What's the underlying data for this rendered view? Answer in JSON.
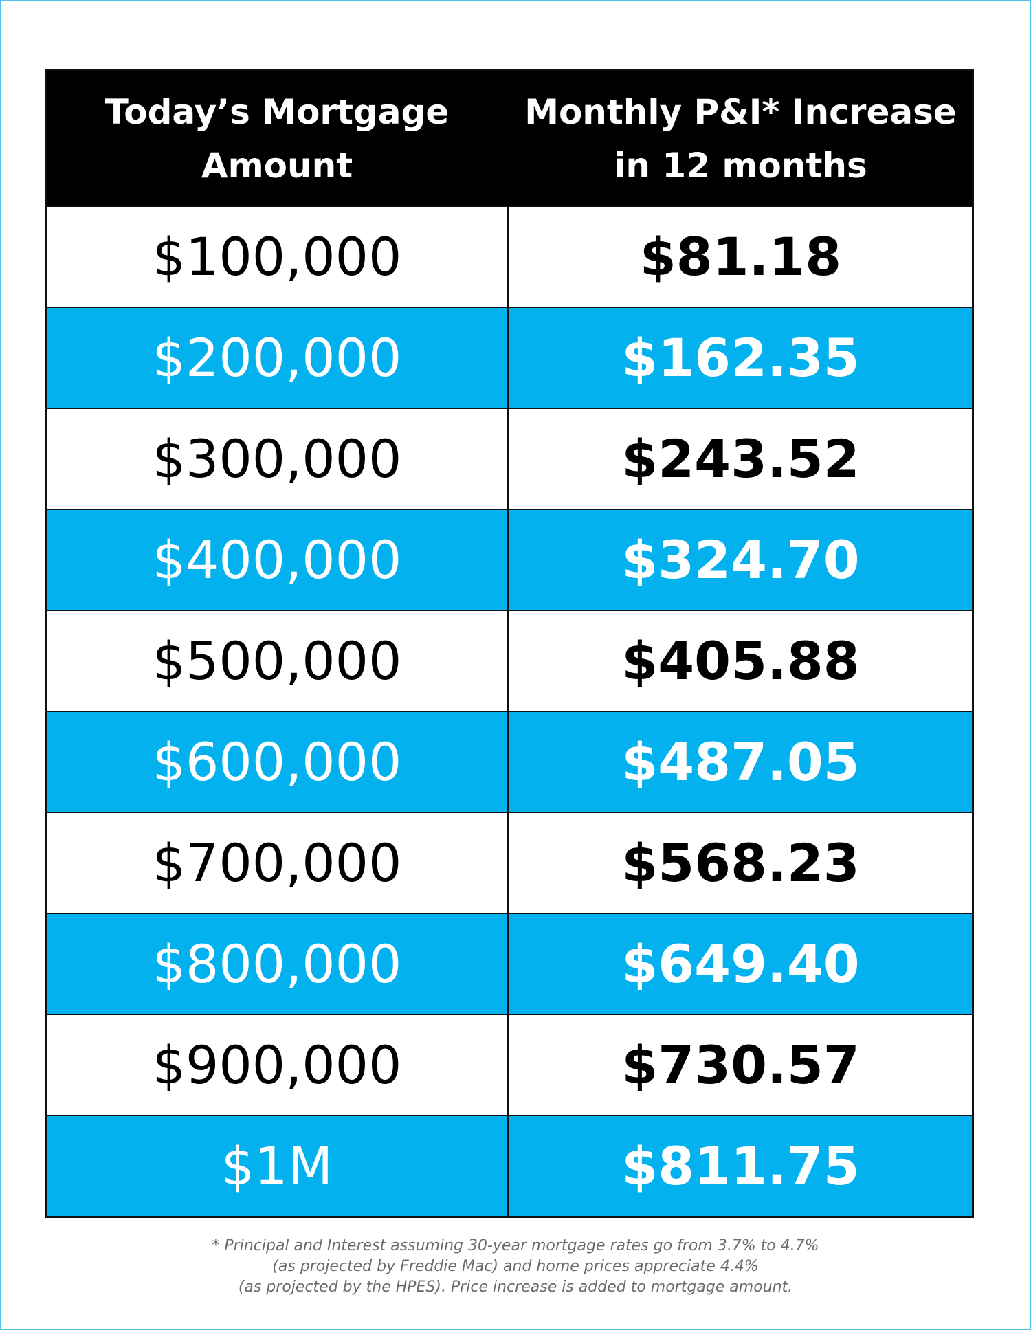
{
  "colors": {
    "header_bg": "#000000",
    "band_blue": "#03b1ef",
    "band_white": "#ffffff",
    "frame": "#4fc3ec",
    "footnote_text": "#6b6b6b"
  },
  "chart_data": {
    "type": "table",
    "columns": [
      "Today’s Mortgage\nAmount",
      "Monthly P&I* Increase\nin 12 months"
    ],
    "rows": [
      [
        "$100,000",
        "$81.18"
      ],
      [
        "$200,000",
        "$162.35"
      ],
      [
        "$300,000",
        "$243.52"
      ],
      [
        "$400,000",
        "$324.70"
      ],
      [
        "$500,000",
        "$405.88"
      ],
      [
        "$600,000",
        "$487.05"
      ],
      [
        "$700,000",
        "$568.23"
      ],
      [
        "$800,000",
        "$649.40"
      ],
      [
        "$900,000",
        "$730.57"
      ],
      [
        "$1M",
        "$811.75"
      ]
    ]
  },
  "footnote": [
    "* Principal and Interest assuming 30-year mortgage rates go from 3.7% to 4.7%",
    "(as projected by Freddie Mac) and home prices appreciate 4.4%",
    "(as projected by the HPES). Price increase is added to mortgage amount."
  ]
}
